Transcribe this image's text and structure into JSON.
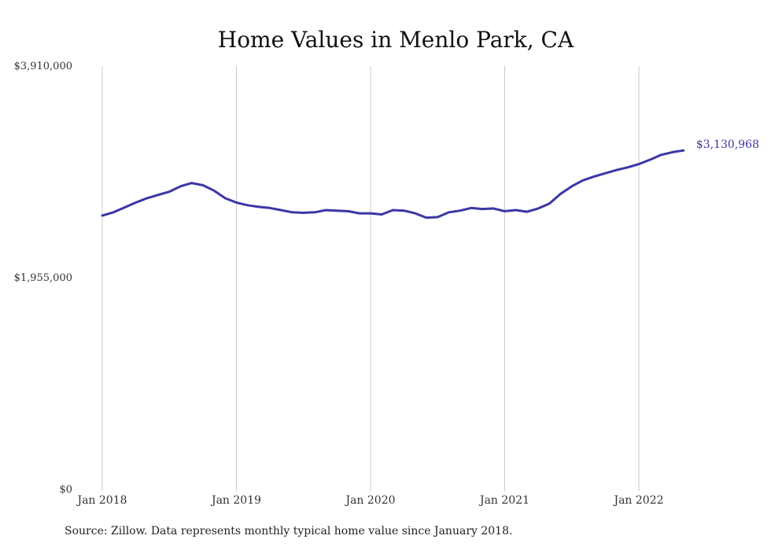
{
  "colors": {
    "line": "#3b36a6",
    "grid": "#c8c8c8",
    "text": "#333333",
    "background": "#ffffff"
  },
  "source": "Source: Zillow. Data represents monthly typical home value since January 2018.",
  "chart_data": {
    "type": "line",
    "title": "Home Values in Menlo Park, CA",
    "xlabel": "",
    "ylabel": "",
    "ylim": [
      0,
      3910000
    ],
    "y_ticks": [
      0,
      1955000,
      3910000
    ],
    "y_tick_labels": [
      "$0",
      "$1,955,000",
      "$3,910,000"
    ],
    "x_tick_labels": [
      "Jan 2018",
      "Jan 2019",
      "Jan 2020",
      "Jan 2021",
      "Jan 2022"
    ],
    "grid": {
      "vertical": true,
      "horizontal": false
    },
    "end_label": "$3,130,968",
    "series": [
      {
        "x": [
          "2018-01",
          "2018-02",
          "2018-03",
          "2018-04",
          "2018-05",
          "2018-06",
          "2018-07",
          "2018-08",
          "2018-09",
          "2018-10",
          "2018-11",
          "2018-12",
          "2019-01",
          "2019-02",
          "2019-03",
          "2019-04",
          "2019-05",
          "2019-06",
          "2019-07",
          "2019-08",
          "2019-09",
          "2019-10",
          "2019-11",
          "2019-12",
          "2020-01",
          "2020-02",
          "2020-03",
          "2020-04",
          "2020-05",
          "2020-06",
          "2020-07",
          "2020-08",
          "2020-09",
          "2020-10",
          "2020-11",
          "2020-12",
          "2021-01",
          "2021-02",
          "2021-03",
          "2021-04",
          "2021-05",
          "2021-06",
          "2021-07",
          "2021-08",
          "2021-09",
          "2021-10",
          "2021-11",
          "2021-12",
          "2022-01",
          "2022-02",
          "2022-03",
          "2022-04",
          "2022-05"
        ],
        "values": [
          2530000,
          2560000,
          2605000,
          2650000,
          2690000,
          2720000,
          2750000,
          2800000,
          2830000,
          2810000,
          2760000,
          2690000,
          2650000,
          2625000,
          2610000,
          2600000,
          2580000,
          2560000,
          2555000,
          2560000,
          2580000,
          2575000,
          2570000,
          2550000,
          2550000,
          2540000,
          2580000,
          2575000,
          2550000,
          2510000,
          2515000,
          2560000,
          2575000,
          2600000,
          2590000,
          2595000,
          2570000,
          2580000,
          2565000,
          2595000,
          2640000,
          2730000,
          2800000,
          2855000,
          2890000,
          2920000,
          2950000,
          2975000,
          3005000,
          3045000,
          3090000,
          3115000,
          3130968
        ]
      }
    ]
  }
}
